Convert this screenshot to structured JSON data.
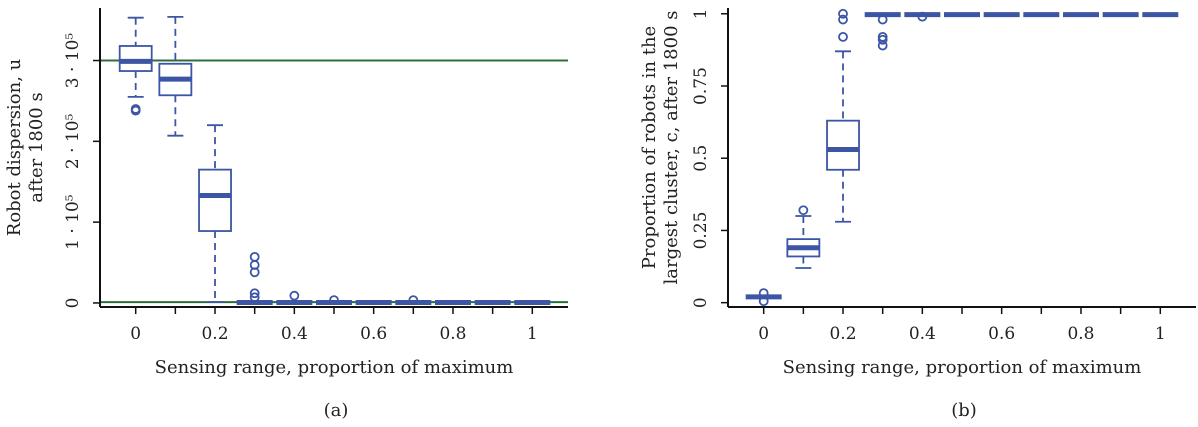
{
  "colors": {
    "box": "#3c55a5",
    "reference_line": "#2e6e3e",
    "axis": "#111111"
  },
  "chart_data": [
    {
      "type": "box",
      "panel_label": "(a)",
      "xlabel": "Sensing range, proportion of maximum",
      "ylabel_lines": [
        "Robot dispersion, u",
        "after 1800 s"
      ],
      "x_ticks": [
        0,
        0.1,
        0.2,
        0.3,
        0.4,
        0.5,
        0.6,
        0.7,
        0.8,
        0.9,
        1.0
      ],
      "x_tick_labels": [
        "0",
        "",
        "0.2",
        "",
        "0.4",
        "",
        "0.6",
        "",
        "0.8",
        "",
        "1"
      ],
      "y_ticks": [
        0,
        100000,
        200000,
        300000
      ],
      "y_tick_labels": [
        "0",
        "1 · 10⁵",
        "2 · 10⁵",
        "3 · 10⁵"
      ],
      "xlim": [
        -0.09,
        1.09
      ],
      "ylim": [
        -5000,
        365000
      ],
      "reference_lines": [
        300000,
        1000
      ],
      "boxes": [
        {
          "x": 0.0,
          "whisker_low": 255000,
          "q1": 287000,
          "median": 299000,
          "q3": 318000,
          "whisker_high": 353000,
          "outliers": [
            238000,
            240000
          ]
        },
        {
          "x": 0.1,
          "whisker_low": 207000,
          "q1": 257000,
          "median": 277000,
          "q3": 296000,
          "whisker_high": 354000,
          "outliers": []
        },
        {
          "x": 0.2,
          "whisker_low": 1000,
          "q1": 89000,
          "median": 133000,
          "q3": 165000,
          "whisker_high": 220000,
          "outliers": []
        },
        {
          "x": 0.3,
          "whisker_low": 0,
          "q1": 0,
          "median": 500,
          "q3": 1500,
          "whisker_high": 3000,
          "outliers": [
            57000,
            47000,
            38000,
            12000,
            7000
          ]
        },
        {
          "x": 0.4,
          "whisker_low": 0,
          "q1": 0,
          "median": 500,
          "q3": 1500,
          "whisker_high": 3000,
          "outliers": [
            9000
          ]
        },
        {
          "x": 0.5,
          "whisker_low": 0,
          "q1": 0,
          "median": 500,
          "q3": 1500,
          "whisker_high": 3000,
          "outliers": [
            3500
          ]
        },
        {
          "x": 0.6,
          "whisker_low": 0,
          "q1": 0,
          "median": 500,
          "q3": 1500,
          "whisker_high": 3000,
          "outliers": []
        },
        {
          "x": 0.7,
          "whisker_low": 0,
          "q1": 0,
          "median": 500,
          "q3": 1500,
          "whisker_high": 3000,
          "outliers": [
            3500
          ]
        },
        {
          "x": 0.8,
          "whisker_low": 0,
          "q1": 0,
          "median": 500,
          "q3": 1500,
          "whisker_high": 3000,
          "outliers": []
        },
        {
          "x": 0.9,
          "whisker_low": 0,
          "q1": 0,
          "median": 500,
          "q3": 1500,
          "whisker_high": 3000,
          "outliers": []
        },
        {
          "x": 1.0,
          "whisker_low": 0,
          "q1": 0,
          "median": 500,
          "q3": 1500,
          "whisker_high": 3000,
          "outliers": []
        }
      ]
    },
    {
      "type": "box",
      "panel_label": "(b)",
      "xlabel": "Sensing range, proportion of maximum",
      "ylabel_lines": [
        "Proportion of robots in the",
        "largest cluster, c, after 1800 s"
      ],
      "x_ticks": [
        0,
        0.1,
        0.2,
        0.3,
        0.4,
        0.5,
        0.6,
        0.7,
        0.8,
        0.9,
        1.0
      ],
      "x_tick_labels": [
        "0",
        "",
        "0.2",
        "",
        "0.4",
        "",
        "0.6",
        "",
        "0.8",
        "",
        "1"
      ],
      "y_ticks": [
        0,
        0.25,
        0.5,
        0.75,
        1
      ],
      "y_tick_labels": [
        "0",
        "0.25",
        "0.5",
        "0.75",
        "1"
      ],
      "xlim": [
        -0.09,
        1.09
      ],
      "ylim": [
        -0.015,
        1.02
      ],
      "reference_lines": [],
      "boxes": [
        {
          "x": 0.0,
          "whisker_low": 0.01,
          "q1": 0.015,
          "median": 0.02,
          "q3": 0.025,
          "whisker_high": 0.03,
          "outliers": [
            0.033,
            0.005
          ]
        },
        {
          "x": 0.1,
          "whisker_low": 0.12,
          "q1": 0.16,
          "median": 0.19,
          "q3": 0.22,
          "whisker_high": 0.3,
          "outliers": [
            0.32
          ]
        },
        {
          "x": 0.2,
          "whisker_low": 0.28,
          "q1": 0.46,
          "median": 0.53,
          "q3": 0.63,
          "whisker_high": 0.87,
          "outliers": [
            0.92,
            0.98,
            1.0
          ]
        },
        {
          "x": 0.3,
          "whisker_low": 0.993,
          "q1": 0.995,
          "median": 0.997,
          "q3": 1.0,
          "whisker_high": 1.0,
          "outliers": [
            0.98,
            0.92,
            0.91,
            0.89
          ]
        },
        {
          "x": 0.4,
          "whisker_low": 0.993,
          "q1": 0.995,
          "median": 0.997,
          "q3": 1.0,
          "whisker_high": 1.0,
          "outliers": [
            0.99
          ]
        },
        {
          "x": 0.5,
          "whisker_low": 0.993,
          "q1": 0.995,
          "median": 0.997,
          "q3": 1.0,
          "whisker_high": 1.0,
          "outliers": []
        },
        {
          "x": 0.6,
          "whisker_low": 0.993,
          "q1": 0.995,
          "median": 0.997,
          "q3": 1.0,
          "whisker_high": 1.0,
          "outliers": []
        },
        {
          "x": 0.7,
          "whisker_low": 0.993,
          "q1": 0.995,
          "median": 0.997,
          "q3": 1.0,
          "whisker_high": 1.0,
          "outliers": []
        },
        {
          "x": 0.8,
          "whisker_low": 0.993,
          "q1": 0.995,
          "median": 0.997,
          "q3": 1.0,
          "whisker_high": 1.0,
          "outliers": []
        },
        {
          "x": 0.9,
          "whisker_low": 0.993,
          "q1": 0.995,
          "median": 0.997,
          "q3": 1.0,
          "whisker_high": 1.0,
          "outliers": []
        },
        {
          "x": 1.0,
          "whisker_low": 0.993,
          "q1": 0.995,
          "median": 0.997,
          "q3": 1.0,
          "whisker_high": 1.0,
          "outliers": []
        }
      ]
    }
  ]
}
